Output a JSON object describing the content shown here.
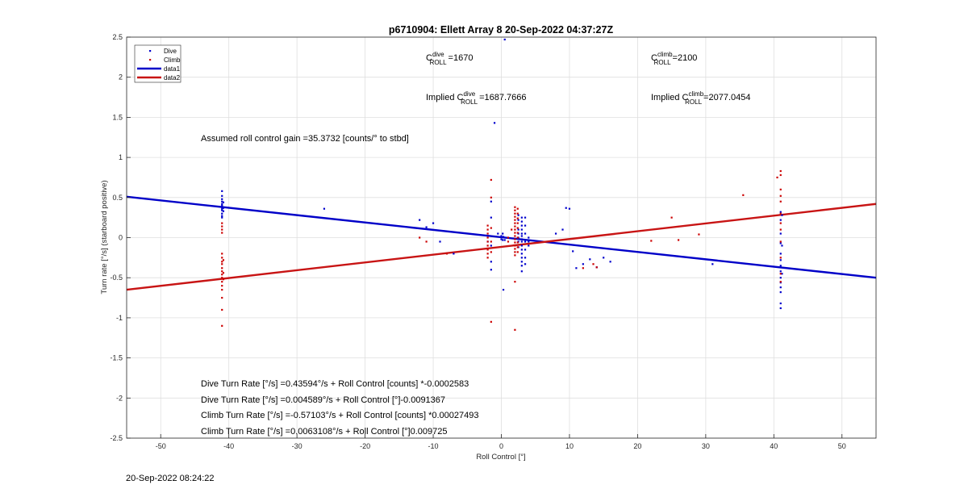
{
  "figure": {
    "timestamp": "20-Sep-2022 08:24:22"
  },
  "chart_data": {
    "type": "scatter",
    "title": "p6710904: Ellett Array 8 20-Sep-2022 04:37:27Z",
    "xlabel": "Roll Control [°]",
    "ylabel": "Turn rate [°/s] (starboard positive)",
    "xlim": [
      -55,
      55
    ],
    "ylim": [
      -2.5,
      2.5
    ],
    "xticks": [
      -50,
      -40,
      -30,
      -20,
      -10,
      0,
      10,
      20,
      30,
      40,
      50
    ],
    "yticks": [
      -2.5,
      -2,
      -1.5,
      -1,
      -0.5,
      0,
      0.5,
      1,
      1.5,
      2,
      2.5
    ],
    "grid": true,
    "legend": {
      "location": "top-left",
      "entries": [
        {
          "label": "Dive",
          "style": "marker",
          "color": "#0000cc"
        },
        {
          "label": "Climb",
          "style": "marker",
          "color": "#cc0000"
        },
        {
          "label": "data1",
          "style": "line",
          "color": "#0000c8"
        },
        {
          "label": "data2",
          "style": "line",
          "color": "#c81414"
        }
      ]
    },
    "series": [
      {
        "name": "Dive",
        "kind": "scatter",
        "color": "#0000cc",
        "points": [
          [
            -41,
            0.58
          ],
          [
            -41,
            0.52
          ],
          [
            -41,
            0.48
          ],
          [
            -41,
            0.45
          ],
          [
            -41,
            0.42
          ],
          [
            -41,
            0.4
          ],
          [
            -41,
            0.38
          ],
          [
            -41,
            0.36
          ],
          [
            -41,
            0.34
          ],
          [
            -41,
            0.3
          ],
          [
            -41,
            0.27
          ],
          [
            -41,
            0.25
          ],
          [
            -40.8,
            0.44
          ],
          [
            -40.8,
            0.37
          ],
          [
            -40.8,
            0.33
          ],
          [
            -26,
            0.36
          ],
          [
            -12,
            0.22
          ],
          [
            -11,
            0.13
          ],
          [
            -10,
            0.18
          ],
          [
            -9,
            -0.05
          ],
          [
            -7,
            -0.2
          ],
          [
            -2,
            -0.05
          ],
          [
            -1.5,
            0.45
          ],
          [
            -1.5,
            0.25
          ],
          [
            -1.5,
            -0.1
          ],
          [
            -1.5,
            -0.3
          ],
          [
            -1.5,
            -0.4
          ],
          [
            -0.5,
            0.05
          ],
          [
            0,
            0.02
          ],
          [
            0,
            -0.02
          ],
          [
            0.2,
            0.05
          ],
          [
            0.2,
            -0.03
          ],
          [
            0.3,
            0.01
          ],
          [
            0.5,
            -0.03
          ],
          [
            0.5,
            2.47
          ],
          [
            0.3,
            -0.65
          ],
          [
            -1,
            1.43
          ],
          [
            2.5,
            0.28
          ],
          [
            2.5,
            0.22
          ],
          [
            2.5,
            0.1
          ],
          [
            2.5,
            0.05
          ],
          [
            2.5,
            0
          ],
          [
            2.5,
            -0.05
          ],
          [
            2.5,
            -0.12
          ],
          [
            3,
            0.25
          ],
          [
            3,
            0.2
          ],
          [
            3,
            0.15
          ],
          [
            3,
            0.1
          ],
          [
            3,
            0.05
          ],
          [
            3,
            0.02
          ],
          [
            3,
            -0.02
          ],
          [
            3,
            -0.05
          ],
          [
            3,
            -0.1
          ],
          [
            3,
            -0.15
          ],
          [
            3,
            -0.2
          ],
          [
            3,
            -0.25
          ],
          [
            3,
            -0.3
          ],
          [
            3,
            -0.35
          ],
          [
            3,
            -0.42
          ],
          [
            3.5,
            0.25
          ],
          [
            3.5,
            0.15
          ],
          [
            3.5,
            0.05
          ],
          [
            3.5,
            -0.05
          ],
          [
            3.5,
            -0.15
          ],
          [
            3.5,
            -0.25
          ],
          [
            3.5,
            -0.33
          ],
          [
            4,
            0
          ],
          [
            4,
            -0.05
          ],
          [
            4,
            -0.1
          ],
          [
            8,
            0.05
          ],
          [
            9,
            0.1
          ],
          [
            9.5,
            0.37
          ],
          [
            10,
            0.36
          ],
          [
            10.5,
            -0.17
          ],
          [
            11,
            -0.38
          ],
          [
            12,
            -0.33
          ],
          [
            13,
            -0.27
          ],
          [
            14,
            -0.37
          ],
          [
            15,
            -0.25
          ],
          [
            16,
            -0.3
          ],
          [
            31,
            -0.33
          ],
          [
            41,
            0.32
          ],
          [
            41,
            0.22
          ],
          [
            41,
            0.05
          ],
          [
            41,
            -0.07
          ],
          [
            41,
            -0.2
          ],
          [
            41,
            -0.28
          ],
          [
            41,
            -0.35
          ],
          [
            41,
            -0.42
          ],
          [
            41,
            -0.5
          ],
          [
            41,
            -0.56
          ],
          [
            41,
            -0.62
          ],
          [
            41,
            -0.68
          ],
          [
            41,
            -0.82
          ],
          [
            41,
            -0.88
          ],
          [
            41.2,
            0.28
          ],
          [
            41.2,
            -0.1
          ],
          [
            41.2,
            -0.45
          ]
        ]
      },
      {
        "name": "Climb",
        "kind": "scatter",
        "color": "#cc0000",
        "points": [
          [
            -41,
            0.18
          ],
          [
            -41,
            0.14
          ],
          [
            -41,
            0.1
          ],
          [
            -41,
            0.06
          ],
          [
            -41,
            -0.2
          ],
          [
            -41,
            -0.25
          ],
          [
            -41,
            -0.3
          ],
          [
            -41,
            -0.33
          ],
          [
            -41,
            -0.38
          ],
          [
            -41,
            -0.42
          ],
          [
            -41,
            -0.46
          ],
          [
            -41,
            -0.5
          ],
          [
            -41,
            -0.55
          ],
          [
            -41,
            -0.6
          ],
          [
            -41,
            -0.65
          ],
          [
            -41,
            -0.75
          ],
          [
            -41,
            -0.9
          ],
          [
            -41,
            -1.1
          ],
          [
            -40.8,
            -0.28
          ],
          [
            -40.8,
            -0.44
          ],
          [
            -40.8,
            -0.52
          ],
          [
            -12,
            0
          ],
          [
            -11,
            -0.05
          ],
          [
            -8,
            -0.2
          ],
          [
            -2,
            0.15
          ],
          [
            -2,
            0.1
          ],
          [
            -2,
            0.05
          ],
          [
            -2,
            0
          ],
          [
            -2,
            -0.05
          ],
          [
            -2,
            -0.1
          ],
          [
            -2,
            -0.15
          ],
          [
            -2,
            -0.2
          ],
          [
            -2,
            -0.25
          ],
          [
            -1.5,
            0.72
          ],
          [
            -1.5,
            0.5
          ],
          [
            -1.5,
            0.12
          ],
          [
            -1.5,
            -0.05
          ],
          [
            -1.5,
            -0.18
          ],
          [
            -1.5,
            -1.05
          ],
          [
            1,
            0
          ],
          [
            1,
            -0.05
          ],
          [
            1.5,
            0.1
          ],
          [
            2,
            0.38
          ],
          [
            2,
            0.34
          ],
          [
            2,
            0.3
          ],
          [
            2,
            0.26
          ],
          [
            2,
            0.22
          ],
          [
            2,
            0.18
          ],
          [
            2,
            0.14
          ],
          [
            2,
            0.1
          ],
          [
            2,
            0.06
          ],
          [
            2,
            0.02
          ],
          [
            2,
            -0.02
          ],
          [
            2,
            -0.06
          ],
          [
            2,
            -0.1
          ],
          [
            2,
            -0.14
          ],
          [
            2,
            -0.18
          ],
          [
            2,
            -0.22
          ],
          [
            2,
            -0.55
          ],
          [
            2,
            -1.15
          ],
          [
            2.4,
            0.36
          ],
          [
            2.4,
            0.3
          ],
          [
            2.4,
            0.24
          ],
          [
            2.4,
            0.18
          ],
          [
            2.4,
            0.12
          ],
          [
            2.4,
            0.06
          ],
          [
            2.4,
            0
          ],
          [
            2.4,
            -0.06
          ],
          [
            2.4,
            -0.12
          ],
          [
            2.4,
            -0.18
          ],
          [
            12,
            -0.38
          ],
          [
            13.5,
            -0.33
          ],
          [
            14,
            -0.37
          ],
          [
            22,
            -0.04
          ],
          [
            25,
            0.25
          ],
          [
            26,
            -0.03
          ],
          [
            29,
            0.04
          ],
          [
            35.5,
            0.53
          ],
          [
            40.5,
            0.75
          ],
          [
            41,
            0.83
          ],
          [
            41,
            0.78
          ],
          [
            41,
            0.6
          ],
          [
            41,
            0.52
          ],
          [
            41,
            0.45
          ],
          [
            41,
            0.3
          ],
          [
            41,
            0.18
          ],
          [
            41,
            0.1
          ],
          [
            41,
            -0.05
          ],
          [
            41,
            -0.25
          ],
          [
            41,
            -0.45
          ],
          [
            41,
            -0.55
          ]
        ]
      },
      {
        "name": "data1",
        "kind": "line",
        "color": "#0000c8",
        "points": [
          [
            -55,
            0.51
          ],
          [
            55,
            -0.5
          ]
        ]
      },
      {
        "name": "data2",
        "kind": "line",
        "color": "#c81414",
        "points": [
          [
            -55,
            -0.65
          ],
          [
            55,
            0.42
          ]
        ]
      }
    ],
    "annotations": {
      "c_dive_base": "C",
      "c_dive_sup": "dive",
      "c_dive_sub": "ROLL",
      "c_dive_val": "=1670",
      "c_climb_base": "C",
      "c_climb_sup": "climb",
      "c_climb_sub": "ROLL",
      "c_climb_val": "=2100",
      "implied_dive_prefix": "Implied C",
      "implied_dive_sup": "dive",
      "implied_dive_sub": "ROLL",
      "implied_dive_val": "=1687.7666",
      "implied_climb_prefix": "Implied C",
      "implied_climb_sup": "climb",
      "implied_climb_sub": "ROLL",
      "implied_climb_val": "=2077.0454",
      "gain": "Assumed roll control gain =35.3732 [counts/° to stbd]",
      "fit1": "Dive Turn Rate [°/s] =0.43594°/s + Roll Control [counts] *-0.0002583",
      "fit2": "Dive Turn Rate [°/s] =0.004589°/s + Roll Control [°]-0.0091367",
      "fit3": "Climb Turn Rate [°/s] =-0.57103°/s + Roll Control [counts] *0.00027493",
      "fit4": "Climb Turn Rate [°/s] =0.0063108°/s + Roll Control [°]0.009725"
    }
  }
}
